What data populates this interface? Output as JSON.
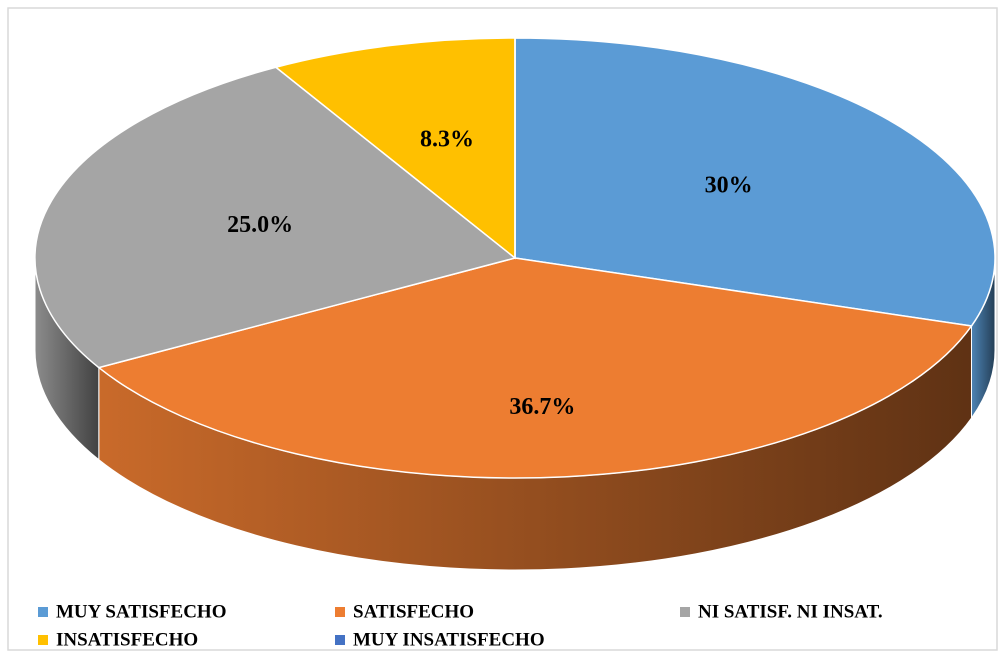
{
  "chart_data": {
    "type": "pie",
    "categories": [
      "MUY SATISFECHO",
      "SATISFECHO",
      "NI SATISF. NI INSAT.",
      "INSATISFECHO",
      "MUY INSATISFECHO"
    ],
    "values": [
      30,
      36.7,
      25,
      8.3,
      0
    ],
    "value_labels": [
      "30%",
      "36.7%",
      "25.0%",
      "8.3%",
      null
    ],
    "colors": [
      "#5b9bd5",
      "#ed7d31",
      "#a5a5a5",
      "#ffc000",
      "#4472c4"
    ],
    "legend": "bottom"
  }
}
